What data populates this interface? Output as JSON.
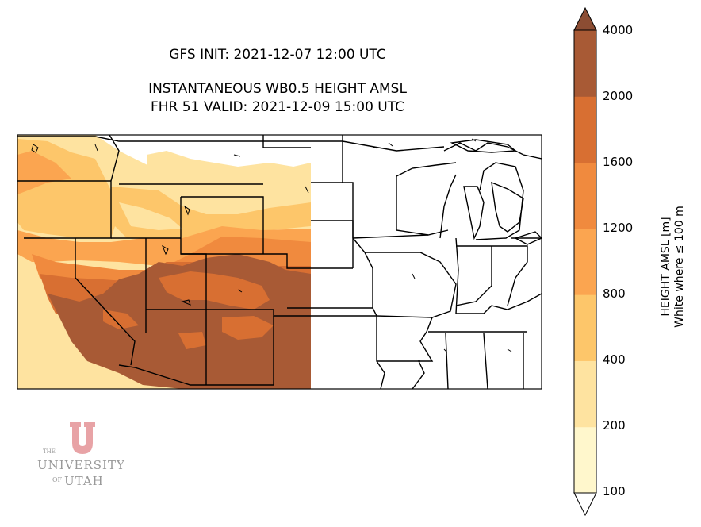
{
  "titles": {
    "init": "GFS INIT: 2021-12-07 12:00 UTC",
    "product": "INSTANTANEOUS WB0.5 HEIGHT AMSL",
    "valid": "FHR 51 VALID: 2021-12-09 15:00 UTC"
  },
  "colorbar": {
    "label_line1": "HEIGHT AMSL [m]",
    "label_line2": "White where ≤ 100 m",
    "ticks": [
      "4000",
      "2000",
      "1600",
      "1200",
      "800",
      "400",
      "200",
      "100"
    ],
    "levels": [
      100,
      200,
      400,
      800,
      1200,
      1600,
      2000,
      4000
    ],
    "colors": [
      "#fff7cc",
      "#fee3a0",
      "#fdc66a",
      "#fba550",
      "#f08a3e",
      "#d86f32",
      "#a85a35"
    ],
    "extend_max_color": "#8c4d33",
    "extend_min_color": "#ffffff"
  },
  "logo": {
    "the": "THE",
    "university": "UNIVERSITY",
    "of": "OF",
    "utah": "UTAH",
    "color": "#e8a3a6"
  },
  "map": {
    "region": "western and central United States",
    "data_extent": "west of the 100th meridian (roughly)"
  }
}
